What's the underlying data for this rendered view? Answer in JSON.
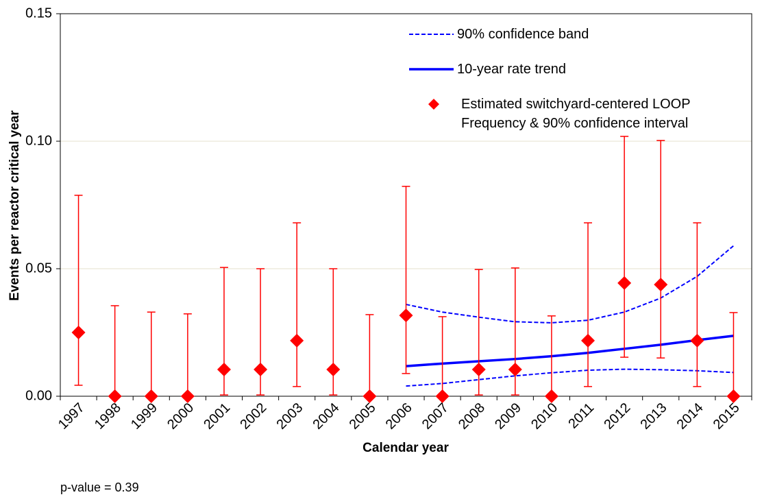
{
  "chart_data": {
    "type": "errorbar-trend",
    "x_label": "Calendar year",
    "y_label": "Events per reactor critical year",
    "annotation": "p-value = 0.39",
    "categories": [
      "1997",
      "1998",
      "1999",
      "2000",
      "2001",
      "2002",
      "2003",
      "2004",
      "2005",
      "2006",
      "2007",
      "2008",
      "2009",
      "2010",
      "2011",
      "2012",
      "2013",
      "2014",
      "2015"
    ],
    "ylim": [
      0,
      0.15
    ],
    "yticks": [
      {
        "value": 0,
        "label": "0.00"
      },
      {
        "value": 0.05,
        "label": "0.05"
      },
      {
        "value": 0.1,
        "label": "0.10"
      },
      {
        "value": 0.15,
        "label": "0.15"
      }
    ],
    "grid": true,
    "series": [
      {
        "name": "90% confidence band",
        "color": "#0000ff",
        "style": "dashed",
        "upper": [
          null,
          null,
          null,
          null,
          null,
          null,
          null,
          null,
          null,
          0.036,
          0.033,
          0.031,
          0.0292,
          0.0288,
          0.0298,
          0.033,
          0.0385,
          0.047,
          0.059
        ],
        "lower": [
          null,
          null,
          null,
          null,
          null,
          null,
          null,
          null,
          null,
          0.004,
          0.005,
          0.0065,
          0.008,
          0.0092,
          0.0102,
          0.0106,
          0.0104,
          0.01,
          0.0093
        ]
      },
      {
        "name": "10-year rate trend",
        "color": "#0000ff",
        "style": "solid",
        "values": [
          null,
          null,
          null,
          null,
          null,
          null,
          null,
          null,
          null,
          0.0118,
          0.0128,
          0.0137,
          0.0146,
          0.0157,
          0.017,
          0.0186,
          0.0202,
          0.022,
          0.0237
        ]
      },
      {
        "name": "Estimated switchyard-centered LOOP Frequency & 90% confidence interval",
        "color": "#ff0000",
        "style": "diamond-errorbar",
        "values": [
          0.025,
          0,
          0,
          0,
          0.0105,
          0.0105,
          0.0218,
          0.0105,
          0,
          0.0317,
          0,
          0.0105,
          0.0105,
          0,
          0.0218,
          0.0444,
          0.0438,
          0.0218,
          0
        ],
        "lower": [
          0.0043,
          0,
          0,
          0,
          0.0005,
          0.0005,
          0.0038,
          0.0005,
          0,
          0.0089,
          0,
          0.0005,
          0.0005,
          0,
          0.0038,
          0.0153,
          0.015,
          0.0038,
          0
        ],
        "upper": [
          0.0788,
          0.0355,
          0.033,
          0.0323,
          0.0505,
          0.05,
          0.068,
          0.05,
          0.032,
          0.0823,
          0.0312,
          0.0497,
          0.0503,
          0.0315,
          0.068,
          0.1019,
          0.1003,
          0.068,
          0.0328
        ]
      }
    ]
  }
}
